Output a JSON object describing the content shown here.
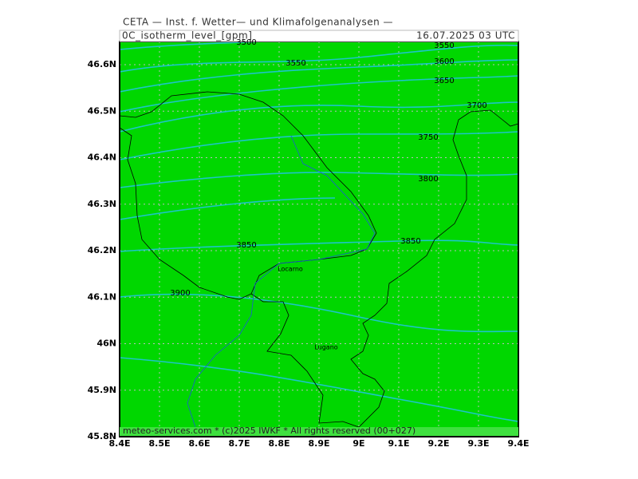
{
  "header": {
    "title": "CETA — Inst. f. Wetter— und Klimafolgenanalysen —",
    "field": "0C_isotherm_level_[gpm]",
    "datetime": "16.07.2025 03 UTC"
  },
  "axes": {
    "x_ticks": [
      "8.4E",
      "8.5E",
      "8.6E",
      "8.7E",
      "8.8E",
      "8.9E",
      "9E",
      "9.1E",
      "9.2E",
      "9.3E",
      "9.4E"
    ],
    "y_ticks": [
      "45.8N",
      "45.9N",
      "46N",
      "46.1N",
      "46.2N",
      "46.3N",
      "46.4N",
      "46.5N",
      "46.6N"
    ]
  },
  "contour_labels": [
    "3500",
    "3550",
    "3550",
    "3600",
    "3650",
    "3700",
    "3750",
    "3800",
    "3850",
    "3850",
    "3900"
  ],
  "places": [
    "Locarno",
    "Lugano"
  ],
  "footer": "meteo-services.com * (c)2025 IWKF * All rights reserved (00+027)"
}
